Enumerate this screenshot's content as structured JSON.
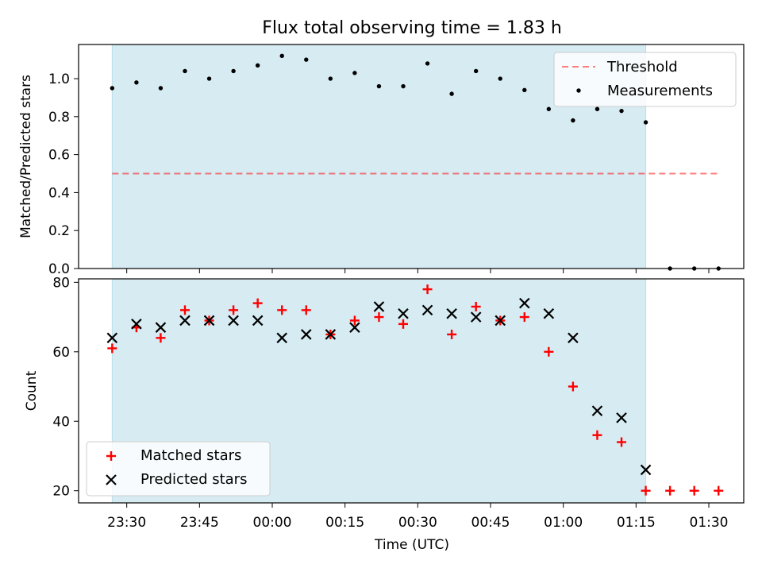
{
  "title": "Flux total observing time = 1.83 h",
  "xlabel": "Time (UTC)",
  "x_tick_labels": [
    "23:30",
    "23:45",
    "00:00",
    "00:15",
    "00:30",
    "00:45",
    "01:00",
    "01:15",
    "01:30"
  ],
  "colors": {
    "shade": "#add8e6",
    "threshold": "#ff0000",
    "matched": "#ff0000",
    "predicted": "#000000",
    "measurement": "#000000"
  },
  "chart_data": [
    {
      "type": "scatter",
      "ylabel": "Matched/Predicted stars",
      "ylim": [
        0,
        1.18
      ],
      "y_ticks": [
        "0.0",
        "0.2",
        "0.4",
        "0.6",
        "0.8",
        "1.0"
      ],
      "legend_position": "top-right",
      "x": [
        "23:27",
        "23:32",
        "23:37",
        "23:42",
        "23:47",
        "23:52",
        "23:57",
        "00:02",
        "00:07",
        "00:12",
        "00:17",
        "00:22",
        "00:27",
        "00:32",
        "00:37",
        "00:42",
        "00:47",
        "00:52",
        "00:57",
        "01:02",
        "01:07",
        "01:12",
        "01:17",
        "01:22",
        "01:27",
        "01:32"
      ],
      "series": [
        {
          "name": "Threshold",
          "style": "dashed-line",
          "x": [
            "23:27",
            "01:32"
          ],
          "values": [
            0.5,
            0.5
          ]
        },
        {
          "name": "Measurements",
          "style": "dot",
          "values": [
            0.95,
            0.98,
            0.95,
            1.04,
            1.0,
            1.04,
            1.07,
            1.12,
            1.1,
            1.0,
            1.03,
            0.96,
            0.96,
            1.08,
            0.92,
            1.04,
            1.0,
            0.94,
            0.84,
            0.78,
            0.84,
            0.83,
            0.77,
            0.0,
            0.0,
            0.0
          ]
        }
      ],
      "shaded_span": [
        "23:27",
        "01:17"
      ]
    },
    {
      "type": "scatter",
      "ylabel": "Count",
      "ylim": [
        16.5,
        81
      ],
      "y_ticks": [
        "20",
        "40",
        "60",
        "80"
      ],
      "legend_position": "bottom-left",
      "x": [
        "23:27",
        "23:32",
        "23:37",
        "23:42",
        "23:47",
        "23:52",
        "23:57",
        "00:02",
        "00:07",
        "00:12",
        "00:17",
        "00:22",
        "00:27",
        "00:32",
        "00:37",
        "00:42",
        "00:47",
        "00:52",
        "00:57",
        "01:02",
        "01:07",
        "01:12",
        "01:17",
        "01:22",
        "01:27",
        "01:32"
      ],
      "series": [
        {
          "name": "Matched stars",
          "style": "plus",
          "values": [
            61,
            67,
            64,
            72,
            69,
            72,
            74,
            72,
            72,
            65,
            69,
            70,
            68,
            78,
            65,
            73,
            69,
            70,
            60,
            50,
            36,
            34,
            20,
            20,
            20,
            20
          ]
        },
        {
          "name": "Predicted stars",
          "style": "cross",
          "values": [
            64,
            68,
            67,
            69,
            69,
            69,
            69,
            64,
            65,
            65,
            67,
            73,
            71,
            72,
            71,
            70,
            69,
            74,
            71,
            64,
            43,
            41,
            26,
            null,
            null,
            null
          ]
        }
      ],
      "shaded_span": [
        "23:27",
        "01:17"
      ]
    }
  ]
}
